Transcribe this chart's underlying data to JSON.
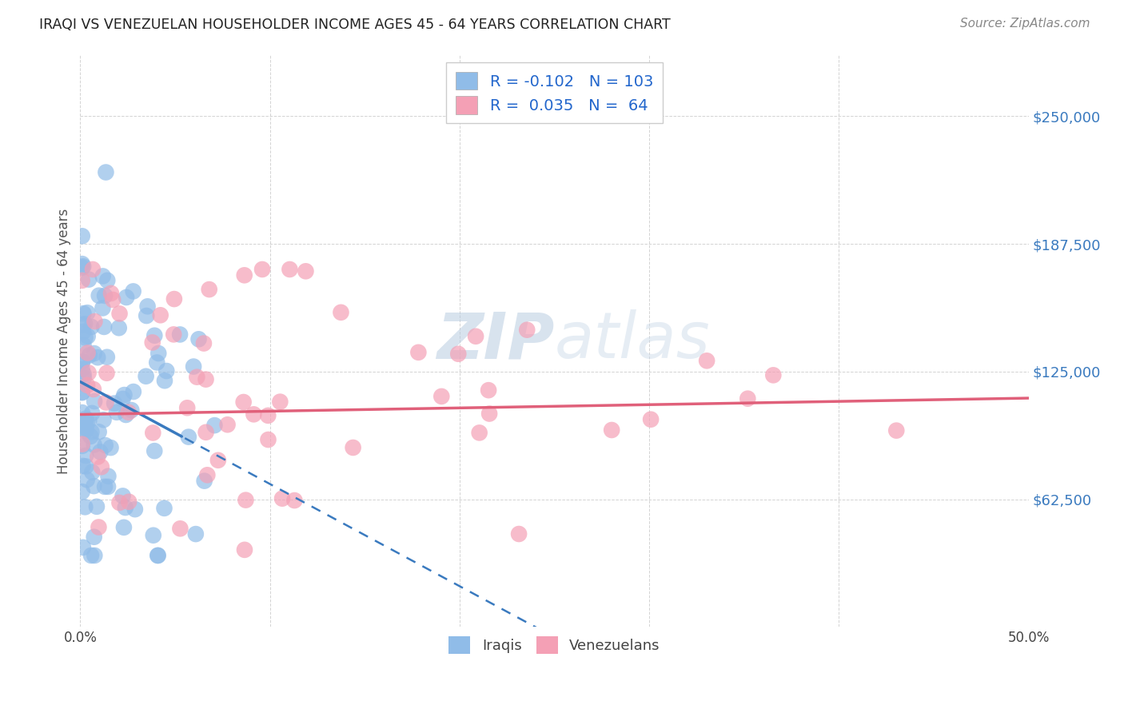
{
  "title": "IRAQI VS VENEZUELAN HOUSEHOLDER INCOME AGES 45 - 64 YEARS CORRELATION CHART",
  "source": "Source: ZipAtlas.com",
  "ylabel": "Householder Income Ages 45 - 64 years",
  "xlim": [
    0.0,
    0.5
  ],
  "ylim": [
    0,
    280000
  ],
  "background_color": "#ffffff",
  "grid_color": "#c8c8c8",
  "watermark_zip": "ZIP",
  "watermark_atlas": "atlas",
  "iraqi_color": "#90bce8",
  "venezuelan_color": "#f4a0b5",
  "iraqi_line_color": "#3a7abf",
  "venezuelan_line_color": "#e0607a",
  "iraqi_R": -0.102,
  "iraqi_N": 103,
  "venezuelan_R": 0.035,
  "venezuelan_N": 64,
  "ytick_color": "#3a7abf",
  "xtick_color": "#444444",
  "title_color": "#222222",
  "source_color": "#888888",
  "legend_text_color": "#2266cc"
}
